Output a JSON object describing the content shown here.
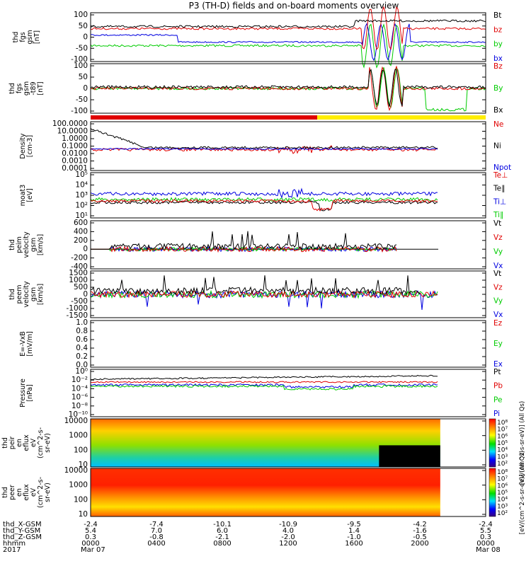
{
  "title": "P3 (TH-D) fields and on-board moments overview",
  "colors": {
    "black": "#000000",
    "red": "#e00000",
    "green": "#00cc00",
    "blue": "#0000e0",
    "yellow": "#ffee00",
    "lime": "#66ff44"
  },
  "chart_data": [
    {
      "type": "line",
      "ylabel": [
        "thd",
        "fgs",
        "gsm",
        "[nT]"
      ],
      "yticks": [
        "100",
        "50",
        "0",
        "-50",
        "-100"
      ],
      "ylim": [
        -100,
        100
      ],
      "legend": [
        {
          "text": "Bt",
          "color": "black"
        },
        {
          "text": "bz",
          "color": "red"
        },
        {
          "text": "by",
          "color": "green"
        },
        {
          "text": "bx",
          "color": "blue"
        }
      ]
    },
    {
      "type": "line",
      "ylabel": [
        "thd",
        "fgs",
        "gsm",
        "-t89",
        "[nT]"
      ],
      "yticks": [
        "100",
        "50",
        "0",
        "-50",
        "-100"
      ],
      "ylim": [
        -125,
        100
      ],
      "legend": [
        {
          "text": "Bz",
          "color": "red"
        },
        {
          "text": "By",
          "color": "green"
        },
        {
          "text": "Bx",
          "color": "black"
        }
      ]
    },
    {
      "type": "line",
      "ylabel": [
        "Density",
        "[cm-3]"
      ],
      "yticks": [
        "100.0000",
        "10.0000",
        "1.0000",
        "0.1000",
        "0.0100",
        "0.0010",
        "0.0001"
      ],
      "scale": "log",
      "legend": [
        {
          "text": "Ne",
          "color": "red"
        },
        {
          "text": "Ni",
          "color": "black"
        },
        {
          "text": "Npot",
          "color": "blue"
        }
      ]
    },
    {
      "type": "line",
      "ylabel": [
        "moat3",
        "[eV]"
      ],
      "yticks": [
        "10⁵",
        "10⁴",
        "10³",
        "10²",
        "10¹"
      ],
      "scale": "log",
      "legend": [
        {
          "text": "Te⊥",
          "color": "red"
        },
        {
          "text": "Te∥",
          "color": "black"
        },
        {
          "text": "Ti⊥",
          "color": "blue"
        },
        {
          "text": "Ti∥",
          "color": "green"
        }
      ]
    },
    {
      "type": "line",
      "ylabel": [
        "thd",
        "peim",
        "velocity",
        "gsm",
        "[km/s]"
      ],
      "yticks": [
        "600",
        "400",
        "200",
        "0",
        "-200",
        "-400"
      ],
      "ylim": [
        -400,
        600
      ],
      "legend": [
        {
          "text": "Vt",
          "color": "black"
        },
        {
          "text": "Vz",
          "color": "red"
        },
        {
          "text": "Vy",
          "color": "green"
        },
        {
          "text": "Vx",
          "color": "blue"
        }
      ]
    },
    {
      "type": "line",
      "ylabel": [
        "thd",
        "peem",
        "velocity",
        "gsm",
        "[km/s]"
      ],
      "yticks": [
        "1500",
        "1000",
        "500",
        "0",
        "-500",
        "-1000",
        "-1500"
      ],
      "ylim": [
        -1500,
        1500
      ],
      "legend": [
        {
          "text": "Vt",
          "color": "black"
        },
        {
          "text": "Vz",
          "color": "red"
        },
        {
          "text": "Vy",
          "color": "green"
        },
        {
          "text": "Vx",
          "color": "blue"
        }
      ]
    },
    {
      "type": "line",
      "ylabel": [
        "E=-VxB",
        "[mV/m]"
      ],
      "yticks": [
        "1.0",
        "0.8",
        "0.6",
        "0.4",
        "0.2",
        "0.0"
      ],
      "ylim": [
        0,
        1
      ],
      "legend": [
        {
          "text": "Ez",
          "color": "red"
        },
        {
          "text": "Ey",
          "color": "green"
        },
        {
          "text": "Ex",
          "color": "blue"
        }
      ]
    },
    {
      "type": "line",
      "ylabel": [
        "Pressure",
        "[nPa]"
      ],
      "yticks": [
        "10⁰",
        "10⁻²",
        "10⁻⁴",
        "10⁻⁶",
        "10⁻⁸",
        "10⁻¹⁰"
      ],
      "scale": "log",
      "legend": [
        {
          "text": "Pt",
          "color": "black"
        },
        {
          "text": "Pb",
          "color": "red"
        },
        {
          "text": "Pe",
          "color": "green"
        },
        {
          "text": "Pi",
          "color": "blue"
        }
      ]
    },
    {
      "type": "heatmap",
      "ylabel": [
        "thd",
        "peir",
        "en",
        "eflux",
        "eV",
        "(cm^2-s-",
        "sr-eV)"
      ],
      "yticks": [
        "10000",
        "1000",
        "100",
        "10"
      ],
      "colorbar_ticks": [
        "10⁸",
        "10⁷",
        "10⁶",
        "10⁵",
        "10⁴",
        "10³",
        "10²"
      ],
      "colorbar_label": "[eV/(cm^2-s-sr-eV)] (All Qs)"
    },
    {
      "type": "heatmap",
      "ylabel": [
        "thd",
        "peer",
        "en",
        "eflux",
        "eV",
        "(cm^2-s-",
        "sr-eV)"
      ],
      "yticks": [
        "10000",
        "1000",
        "100",
        "10"
      ],
      "colorbar_ticks": [
        "10⁸",
        "10⁷",
        "10⁶",
        "10⁵",
        "10⁴",
        "10³",
        "10²"
      ],
      "colorbar_label": "[eV/(cm^2-s-sr-eV)] (All Qs)"
    }
  ],
  "xaxis": {
    "row_labels": [
      "thd_X-GSM",
      "thd_Y-GSM",
      "thd_Z-GSM",
      "hhmm",
      "2017"
    ],
    "columns": [
      [
        "-2.4",
        "5.4",
        "0.3",
        "0000",
        "Mar 07"
      ],
      [
        "-7.4",
        "7.0",
        "-0.8",
        "0400",
        ""
      ],
      [
        "-10.1",
        "6.0",
        "-2.1",
        "0800",
        ""
      ],
      [
        "-10.9",
        "4.0",
        "-2.0",
        "1200",
        ""
      ],
      [
        "-9.5",
        "1.4",
        "-1.0",
        "1600",
        ""
      ],
      [
        "-4.2",
        "-1.6",
        "-0.5",
        "2000",
        ""
      ],
      [
        "-2.4",
        "5.5",
        "0.3",
        "0000",
        "Mar 08"
      ]
    ]
  }
}
